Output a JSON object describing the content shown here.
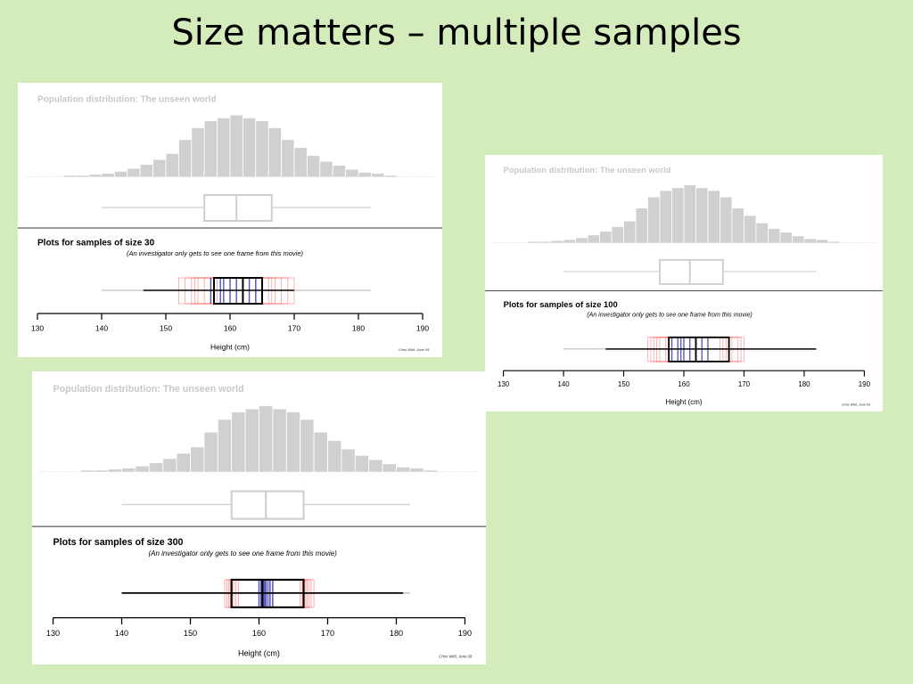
{
  "title": "Size matters – multiple samples",
  "chart_data": [
    {
      "type": "histogram",
      "population_title": "Population distribution: The unseen world",
      "sample_title": "Plots for samples of size 30",
      "sample_subtitle": "(An investigator only gets to see one frame from this movie)",
      "xlabel": "Height (cm)",
      "credit": "Chris Wild, June 09",
      "xlim": [
        130,
        190
      ],
      "xticks": [
        130,
        140,
        150,
        160,
        170,
        180,
        190
      ],
      "bins": [
        128,
        130,
        132,
        134,
        136,
        138,
        140,
        142,
        144,
        146,
        148,
        150,
        152,
        154,
        156,
        158,
        160,
        162,
        164,
        166,
        168,
        170,
        172,
        174,
        176,
        178,
        180,
        182,
        184,
        186,
        188,
        190,
        192
      ],
      "counts": [
        1,
        1,
        1,
        2,
        2,
        3,
        4,
        6,
        9,
        13,
        18,
        24,
        38,
        50,
        57,
        60,
        63,
        60,
        57,
        50,
        38,
        30,
        22,
        16,
        12,
        8,
        5,
        4,
        2,
        1,
        1,
        1
      ],
      "color": "#d0d0d0",
      "population_box": {
        "whisker_low": 140,
        "q1": 156,
        "median": 161,
        "q3": 166.5,
        "whisker_high": 182
      },
      "sample_box": {
        "whisker_low": 146.5,
        "q1": 157.5,
        "median": 162,
        "q3": 165,
        "whisker_high": 170
      },
      "frames": {
        "q1": [
          152,
          153,
          154,
          155,
          156,
          157,
          158,
          154.5
        ],
        "median": [
          157,
          158.5,
          159,
          160,
          161,
          162,
          163,
          164
        ],
        "q3": [
          164,
          165,
          166,
          167,
          168,
          169,
          170,
          166.5
        ]
      },
      "frame_color": "#ff4d4d",
      "median_color": "#2a2aa8"
    },
    {
      "type": "histogram",
      "population_title": "Population distribution: The unseen world",
      "sample_title": "Plots for samples of size 100",
      "sample_subtitle": "(An investigator only gets to see one frame from this movie)",
      "xlabel": "Height (cm)",
      "credit": "Chris Wild, June 09",
      "xlim": [
        130,
        190
      ],
      "xticks": [
        130,
        140,
        150,
        160,
        170,
        180,
        190
      ],
      "bins": [
        128,
        130,
        132,
        134,
        136,
        138,
        140,
        142,
        144,
        146,
        148,
        150,
        152,
        154,
        156,
        158,
        160,
        162,
        164,
        166,
        168,
        170,
        172,
        174,
        176,
        178,
        180,
        182,
        184,
        186,
        188,
        190,
        192
      ],
      "counts": [
        1,
        1,
        1,
        2,
        2,
        3,
        4,
        6,
        9,
        13,
        18,
        24,
        38,
        50,
        57,
        60,
        63,
        60,
        57,
        50,
        38,
        30,
        22,
        16,
        12,
        8,
        5,
        4,
        2,
        1,
        1,
        1
      ],
      "color": "#d0d0d0",
      "population_box": {
        "whisker_low": 140,
        "q1": 156,
        "median": 161,
        "q3": 166.5,
        "whisker_high": 182
      },
      "sample_box": {
        "whisker_low": 147,
        "q1": 157.5,
        "median": 162,
        "q3": 167.5,
        "whisker_high": 182
      },
      "frames": {
        "q1": [
          154,
          154.5,
          155,
          155.5,
          156,
          157,
          157.5,
          158
        ],
        "median": [
          158,
          159,
          159.5,
          160,
          161,
          162,
          163,
          164
        ],
        "q3": [
          166,
          166.5,
          167,
          167.5,
          168,
          169,
          169.5,
          170
        ]
      },
      "frame_color": "#ff4d4d",
      "median_color": "#2a2aa8"
    },
    {
      "type": "histogram",
      "population_title": "Population distribution: The unseen world",
      "sample_title": "Plots for samples of size 300",
      "sample_subtitle": "(An investigator only gets to see one frame from this movie)",
      "xlabel": "Height (cm)",
      "credit": "Chris Wild, June 09",
      "xlim": [
        130,
        190
      ],
      "xticks": [
        130,
        140,
        150,
        160,
        170,
        180,
        190
      ],
      "bins": [
        128,
        130,
        132,
        134,
        136,
        138,
        140,
        142,
        144,
        146,
        148,
        150,
        152,
        154,
        156,
        158,
        160,
        162,
        164,
        166,
        168,
        170,
        172,
        174,
        176,
        178,
        180,
        182,
        184,
        186,
        188,
        190,
        192
      ],
      "counts": [
        1,
        1,
        1,
        2,
        2,
        3,
        4,
        6,
        9,
        13,
        18,
        24,
        38,
        50,
        57,
        60,
        63,
        60,
        57,
        50,
        38,
        30,
        22,
        16,
        12,
        8,
        5,
        4,
        2,
        1,
        1,
        1
      ],
      "color": "#d0d0d0",
      "population_box": {
        "whisker_low": 140,
        "q1": 156,
        "median": 161,
        "q3": 166.5,
        "whisker_high": 182
      },
      "sample_box": {
        "whisker_low": 140,
        "q1": 156,
        "median": 160.5,
        "q3": 166.5,
        "whisker_high": 181
      },
      "frames": {
        "q1": [
          155,
          155.3,
          155.6,
          156,
          156.3,
          156.6,
          157,
          155.8
        ],
        "median": [
          160,
          160.3,
          160.6,
          161,
          161.3,
          161.6,
          162,
          160.8
        ],
        "q3": [
          166,
          166.3,
          166.6,
          167,
          167.3,
          167.6,
          168,
          166.8
        ]
      },
      "frame_color": "#ff4d4d",
      "median_color": "#2a2aa8"
    }
  ]
}
